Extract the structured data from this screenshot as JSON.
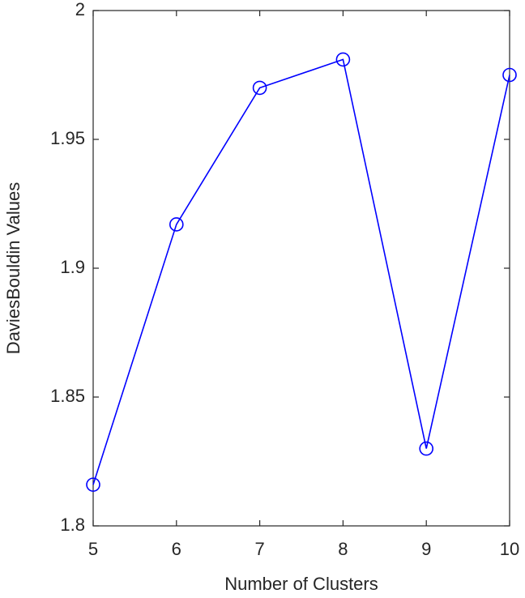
{
  "chart_data": {
    "type": "line",
    "x_label": "Number of Clusters",
    "y_label": "DaviesBouldin Values",
    "x": [
      5,
      6,
      7,
      8,
      9,
      10
    ],
    "series": [
      {
        "name": "DaviesBouldin Values",
        "color": "#0000ff",
        "values": [
          1.816,
          1.917,
          1.97,
          1.981,
          1.83,
          1.975
        ]
      }
    ],
    "xlim": [
      5,
      10
    ],
    "xticks": [
      5,
      6,
      7,
      8,
      9,
      10
    ],
    "ylim": [
      1.8,
      2
    ],
    "yticks": [
      1.8,
      1.85,
      1.9,
      1.95,
      2
    ],
    "marker": "circle",
    "grid": false
  }
}
